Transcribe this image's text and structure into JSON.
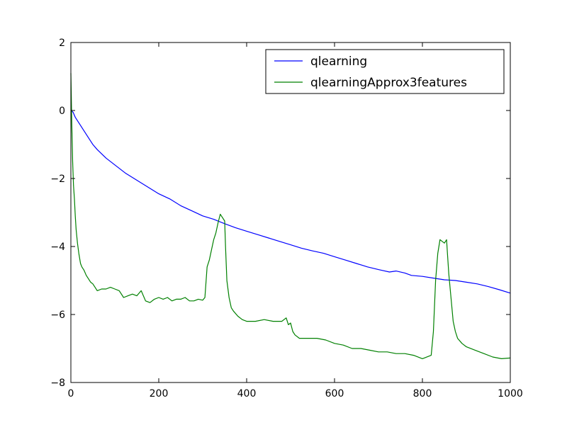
{
  "chart_data": {
    "type": "line",
    "title": "",
    "xlabel": "",
    "ylabel": "",
    "xlim": [
      0,
      1000
    ],
    "ylim": [
      -8,
      2
    ],
    "xticks": [
      0,
      200,
      400,
      600,
      800,
      1000
    ],
    "yticks": [
      2,
      0,
      -2,
      -4,
      -6,
      -8
    ],
    "xtick_labels": [
      "0",
      "200",
      "400",
      "600",
      "800",
      "1000"
    ],
    "ytick_labels": [
      "2",
      "0",
      "−2",
      "−4",
      "−6",
      "−8"
    ],
    "grid": false,
    "legend_position": "top-right",
    "series": [
      {
        "name": "qlearning",
        "color": "#0000ff",
        "points": [
          [
            0,
            0.0
          ],
          [
            5,
            -0.05
          ],
          [
            10,
            -0.2
          ],
          [
            20,
            -0.4
          ],
          [
            30,
            -0.6
          ],
          [
            40,
            -0.8
          ],
          [
            50,
            -1.0
          ],
          [
            60,
            -1.15
          ],
          [
            80,
            -1.4
          ],
          [
            100,
            -1.6
          ],
          [
            125,
            -1.85
          ],
          [
            150,
            -2.05
          ],
          [
            175,
            -2.25
          ],
          [
            200,
            -2.45
          ],
          [
            225,
            -2.6
          ],
          [
            250,
            -2.8
          ],
          [
            275,
            -2.95
          ],
          [
            300,
            -3.1
          ],
          [
            325,
            -3.2
          ],
          [
            350,
            -3.33
          ],
          [
            375,
            -3.45
          ],
          [
            400,
            -3.55
          ],
          [
            425,
            -3.65
          ],
          [
            450,
            -3.75
          ],
          [
            475,
            -3.85
          ],
          [
            500,
            -3.95
          ],
          [
            525,
            -4.05
          ],
          [
            550,
            -4.13
          ],
          [
            575,
            -4.2
          ],
          [
            600,
            -4.3
          ],
          [
            625,
            -4.4
          ],
          [
            650,
            -4.5
          ],
          [
            675,
            -4.6
          ],
          [
            700,
            -4.68
          ],
          [
            725,
            -4.75
          ],
          [
            740,
            -4.72
          ],
          [
            760,
            -4.78
          ],
          [
            775,
            -4.85
          ],
          [
            800,
            -4.88
          ],
          [
            825,
            -4.93
          ],
          [
            850,
            -4.98
          ],
          [
            875,
            -5.0
          ],
          [
            900,
            -5.05
          ],
          [
            925,
            -5.1
          ],
          [
            950,
            -5.18
          ],
          [
            975,
            -5.27
          ],
          [
            1000,
            -5.37
          ]
        ]
      },
      {
        "name": "qlearningApprox3features",
        "color": "#008000",
        "points": [
          [
            0,
            1.1
          ],
          [
            2,
            -0.3
          ],
          [
            4,
            -1.5
          ],
          [
            6,
            -2.2
          ],
          [
            8,
            -2.6
          ],
          [
            10,
            -3.1
          ],
          [
            12,
            -3.5
          ],
          [
            15,
            -3.9
          ],
          [
            18,
            -4.2
          ],
          [
            22,
            -4.5
          ],
          [
            25,
            -4.6
          ],
          [
            30,
            -4.7
          ],
          [
            35,
            -4.85
          ],
          [
            40,
            -4.95
          ],
          [
            45,
            -5.05
          ],
          [
            50,
            -5.1
          ],
          [
            55,
            -5.2
          ],
          [
            60,
            -5.3
          ],
          [
            70,
            -5.25
          ],
          [
            80,
            -5.25
          ],
          [
            90,
            -5.2
          ],
          [
            100,
            -5.25
          ],
          [
            110,
            -5.3
          ],
          [
            120,
            -5.5
          ],
          [
            130,
            -5.45
          ],
          [
            140,
            -5.4
          ],
          [
            150,
            -5.45
          ],
          [
            160,
            -5.3
          ],
          [
            170,
            -5.6
          ],
          [
            180,
            -5.65
          ],
          [
            190,
            -5.55
          ],
          [
            200,
            -5.5
          ],
          [
            210,
            -5.55
          ],
          [
            220,
            -5.5
          ],
          [
            230,
            -5.6
          ],
          [
            240,
            -5.55
          ],
          [
            250,
            -5.55
          ],
          [
            260,
            -5.5
          ],
          [
            270,
            -5.6
          ],
          [
            280,
            -5.6
          ],
          [
            290,
            -5.55
          ],
          [
            300,
            -5.58
          ],
          [
            305,
            -5.5
          ],
          [
            310,
            -4.6
          ],
          [
            315,
            -4.4
          ],
          [
            320,
            -4.1
          ],
          [
            325,
            -3.8
          ],
          [
            330,
            -3.6
          ],
          [
            335,
            -3.3
          ],
          [
            340,
            -3.05
          ],
          [
            345,
            -3.15
          ],
          [
            350,
            -3.25
          ],
          [
            352,
            -4.0
          ],
          [
            355,
            -5.0
          ],
          [
            360,
            -5.5
          ],
          [
            365,
            -5.8
          ],
          [
            370,
            -5.9
          ],
          [
            380,
            -6.05
          ],
          [
            390,
            -6.15
          ],
          [
            400,
            -6.2
          ],
          [
            420,
            -6.2
          ],
          [
            440,
            -6.15
          ],
          [
            460,
            -6.2
          ],
          [
            480,
            -6.2
          ],
          [
            490,
            -6.1
          ],
          [
            495,
            -6.3
          ],
          [
            500,
            -6.25
          ],
          [
            505,
            -6.5
          ],
          [
            510,
            -6.6
          ],
          [
            520,
            -6.7
          ],
          [
            540,
            -6.7
          ],
          [
            560,
            -6.7
          ],
          [
            580,
            -6.75
          ],
          [
            600,
            -6.85
          ],
          [
            620,
            -6.9
          ],
          [
            640,
            -7.0
          ],
          [
            660,
            -7.0
          ],
          [
            680,
            -7.05
          ],
          [
            700,
            -7.1
          ],
          [
            720,
            -7.1
          ],
          [
            740,
            -7.15
          ],
          [
            760,
            -7.15
          ],
          [
            780,
            -7.2
          ],
          [
            800,
            -7.3
          ],
          [
            820,
            -7.2
          ],
          [
            825,
            -6.5
          ],
          [
            830,
            -5.0
          ],
          [
            835,
            -4.2
          ],
          [
            840,
            -3.8
          ],
          [
            845,
            -3.85
          ],
          [
            850,
            -3.9
          ],
          [
            855,
            -3.8
          ],
          [
            857,
            -4.2
          ],
          [
            860,
            -4.8
          ],
          [
            865,
            -5.5
          ],
          [
            870,
            -6.2
          ],
          [
            875,
            -6.5
          ],
          [
            880,
            -6.7
          ],
          [
            890,
            -6.85
          ],
          [
            900,
            -6.95
          ],
          [
            920,
            -7.05
          ],
          [
            940,
            -7.15
          ],
          [
            960,
            -7.25
          ],
          [
            980,
            -7.3
          ],
          [
            1000,
            -7.28
          ]
        ]
      }
    ]
  }
}
